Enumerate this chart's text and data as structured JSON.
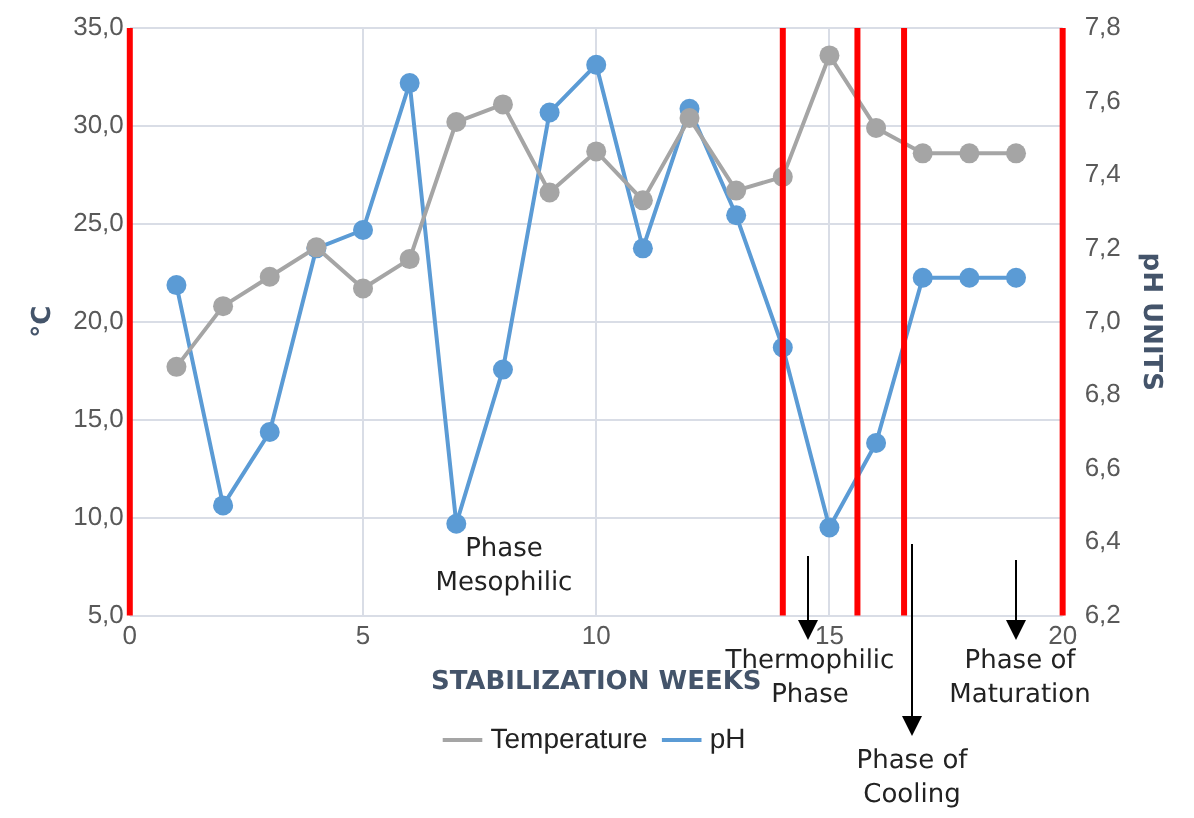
{
  "chart_data": {
    "type": "line",
    "xlabel": "STABILIZATION WEEKS",
    "ylabel": "°C",
    "y2label": "pH UNITS",
    "x": [
      1,
      2,
      3,
      4,
      5,
      6,
      7,
      8,
      9,
      10,
      11,
      12,
      13,
      14,
      15,
      16,
      17,
      18,
      19
    ],
    "series": [
      {
        "name": "Temperature",
        "color": "#a5a5a5",
        "values": [
          17.7,
          20.8,
          22.3,
          23.8,
          21.7,
          23.2,
          30.2,
          31.1,
          26.6,
          28.7,
          26.2,
          30.4,
          26.7,
          27.4,
          33.6,
          29.9,
          28.6,
          28.6,
          28.6
        ]
      },
      {
        "name": "pH",
        "color": "#5b9bd5",
        "axis": "y2",
        "values": [
          7.1,
          6.5,
          6.7,
          7.2,
          7.25,
          7.65,
          6.45,
          6.87,
          7.57,
          7.7,
          7.2,
          7.58,
          7.29,
          6.93,
          6.44,
          6.67,
          7.12,
          7.12,
          7.12
        ]
      }
    ],
    "xlim": [
      0,
      20
    ],
    "xticks": [
      0,
      5,
      10,
      15,
      20
    ],
    "ylim": [
      5,
      35
    ],
    "yticks": [
      {
        "value": 5,
        "label": "5,0"
      },
      {
        "value": 10,
        "label": "10,0"
      },
      {
        "value": 15,
        "label": "15,0"
      },
      {
        "value": 20,
        "label": "20,0"
      },
      {
        "value": 25,
        "label": "25,0"
      },
      {
        "value": 30,
        "label": "30,0"
      },
      {
        "value": 35,
        "label": "35,0"
      }
    ],
    "y2lim": [
      6.2,
      7.8
    ],
    "y2ticks": [
      {
        "value": 6.2,
        "label": "6,2"
      },
      {
        "value": 6.4,
        "label": "6,4"
      },
      {
        "value": 6.6,
        "label": "6,6"
      },
      {
        "value": 6.8,
        "label": "6,8"
      },
      {
        "value": 7.0,
        "label": "7,0"
      },
      {
        "value": 7.2,
        "label": "7,2"
      },
      {
        "value": 7.4,
        "label": "7,4"
      },
      {
        "value": 7.6,
        "label": "7,6"
      },
      {
        "value": 7.8,
        "label": "7,8"
      }
    ],
    "ref_lines": [
      {
        "axis": "x",
        "value": 0,
        "color": "#ff0000"
      },
      {
        "axis": "x",
        "value": 14,
        "color": "#ff0000"
      },
      {
        "axis": "x",
        "value": 15.6,
        "color": "#ff0000"
      },
      {
        "axis": "x",
        "value": 16.6,
        "color": "#ff0000"
      },
      {
        "axis": "x",
        "value": 20,
        "color": "#ff0000"
      }
    ],
    "annotations": [
      "Phase Mesophilic",
      "Thermophilic Phase",
      "Phase of Cooling",
      "Phase of Maturation"
    ],
    "grid": true,
    "legend": "bottom",
    "marker": "circle",
    "line_style": "solid"
  }
}
